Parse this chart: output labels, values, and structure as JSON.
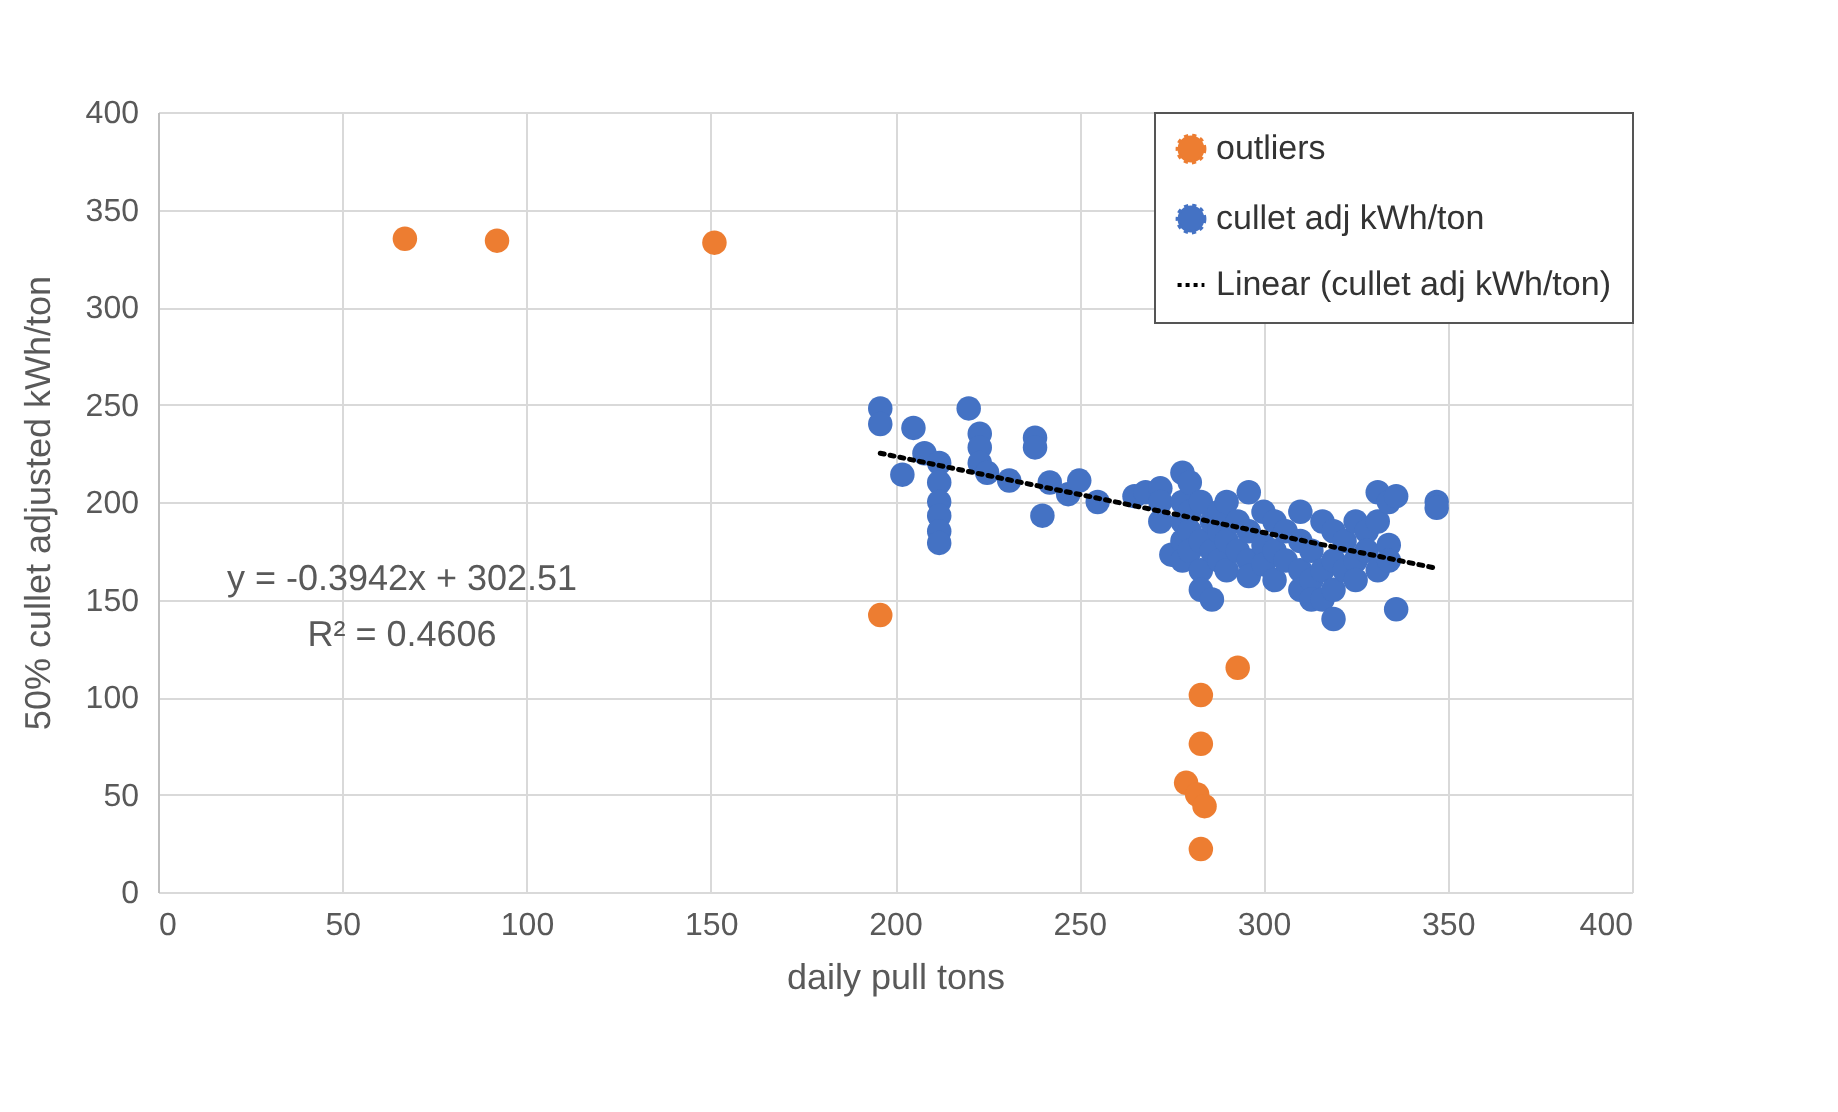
{
  "chart_data": {
    "type": "scatter",
    "xlabel": "daily pull tons",
    "ylabel": "50% cullet adjusted kWh/ton",
    "xlim": [
      0,
      400
    ],
    "xticks": [
      0,
      50,
      100,
      150,
      200,
      250,
      300,
      350,
      400
    ],
    "ylim": [
      0,
      400
    ],
    "yticks": [
      0,
      50,
      100,
      150,
      200,
      250,
      300,
      350,
      400
    ],
    "grid": true,
    "legend": "top right",
    "marker": "circle",
    "annotations": [
      "y = -0.3942x + 302.51",
      "R² = 0.4606"
    ],
    "series": [
      {
        "name": "outliers",
        "color": "#ed7d31",
        "x": [
          67,
          92,
          151,
          196,
          283,
          283,
          279,
          282,
          284,
          283,
          293
        ],
        "values": [
          335,
          334,
          333,
          142,
          101,
          76,
          56,
          50,
          44,
          22,
          115
        ]
      },
      {
        "name": "cullet adj kWh/ton",
        "color": "#4472c4",
        "x": [
          196,
          196,
          202,
          205,
          208,
          212,
          212,
          212,
          212,
          212,
          212,
          220,
          223,
          223,
          223,
          225,
          231,
          238,
          238,
          240,
          242,
          247,
          250,
          255,
          265,
          268,
          272,
          272,
          272,
          275,
          278,
          278,
          278,
          278,
          278,
          280,
          280,
          280,
          280,
          283,
          283,
          283,
          283,
          286,
          286,
          286,
          288,
          288,
          288,
          290,
          290,
          290,
          293,
          293,
          296,
          296,
          296,
          296,
          300,
          300,
          300,
          303,
          303,
          303,
          306,
          306,
          310,
          310,
          310,
          310,
          313,
          313,
          313,
          316,
          316,
          316,
          319,
          319,
          319,
          319,
          322,
          322,
          325,
          325,
          325,
          328,
          328,
          331,
          331,
          331,
          334,
          334,
          334,
          336,
          336,
          347,
          347
        ],
        "values": [
          248,
          240,
          214,
          238,
          225,
          220,
          210,
          200,
          193,
          185,
          179,
          248,
          235,
          228,
          220,
          215,
          211,
          233,
          228,
          193,
          210,
          204,
          211,
          200,
          203,
          205,
          207,
          200,
          190,
          173,
          215,
          200,
          190,
          180,
          170,
          195,
          185,
          175,
          210,
          200,
          180,
          165,
          155,
          150,
          190,
          175,
          185,
          170,
          195,
          180,
          165,
          200,
          190,
          175,
          205,
          185,
          170,
          162,
          195,
          178,
          168,
          190,
          175,
          160,
          185,
          170,
          195,
          180,
          165,
          155,
          175,
          160,
          150,
          190,
          165,
          150,
          185,
          170,
          140,
          155,
          180,
          165,
          190,
          170,
          160,
          185,
          175,
          205,
          190,
          165,
          200,
          178,
          170,
          203,
          145,
          200,
          197
        ]
      },
      {
        "name": "Linear (cullet adj kWh/ton)",
        "type": "line",
        "color": "#000000",
        "line_style": "dotted",
        "marker": "none",
        "x": [
          196,
          347
        ],
        "values": [
          225,
          166
        ]
      }
    ]
  }
}
